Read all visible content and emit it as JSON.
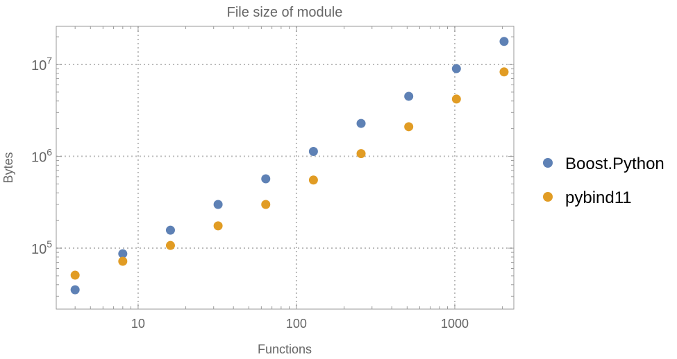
{
  "chart_data": {
    "type": "scatter",
    "title": "File size of module",
    "xlabel": "Functions",
    "ylabel": "Bytes",
    "xscale": "log",
    "yscale": "log",
    "xlim": [
      3.04,
      2360
    ],
    "ylim": [
      21700,
      26000000
    ],
    "grid": true,
    "legend_position": "right",
    "x_ticks": [
      {
        "value": 10,
        "label": "10"
      },
      {
        "value": 100,
        "label": "100"
      },
      {
        "value": 1000,
        "label": "1000"
      }
    ],
    "y_ticks": [
      {
        "value": 100000,
        "base": "10",
        "exp": "5"
      },
      {
        "value": 1000000,
        "base": "10",
        "exp": "6"
      },
      {
        "value": 10000000,
        "base": "10",
        "exp": "7"
      }
    ],
    "x": [
      4,
      8,
      16,
      32,
      64,
      128,
      256,
      512,
      1024,
      2048
    ],
    "series": [
      {
        "name": "Boost.Python",
        "color": "#5E81B5",
        "values": [
          35200,
          87000,
          157000,
          299000,
          569000,
          1130000,
          2280000,
          4500000,
          9000000,
          17800000
        ]
      },
      {
        "name": "pybind11",
        "color": "#E19C24",
        "values": [
          50800,
          72000,
          107000,
          175000,
          299000,
          552000,
          1070000,
          2100000,
          4200000,
          8300000
        ]
      }
    ]
  }
}
